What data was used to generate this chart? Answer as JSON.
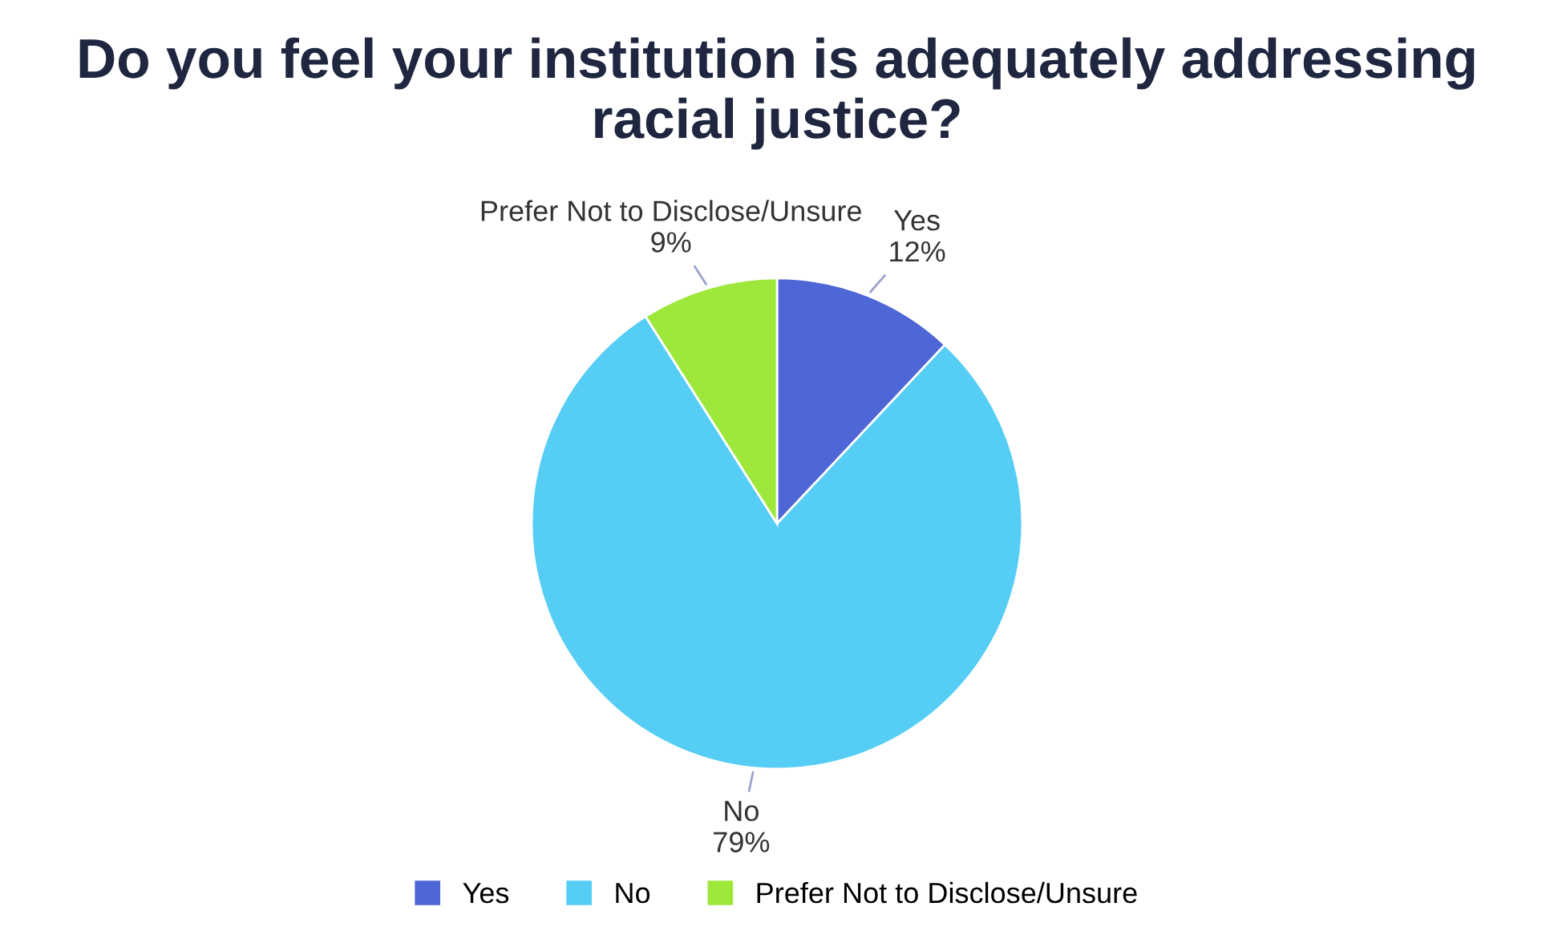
{
  "chart_data": {
    "type": "pie",
    "title": "Do you feel your institution is adequately addressing racial justice?",
    "categories": [
      "Yes",
      "No",
      "Prefer Not to Disclose/Unsure"
    ],
    "values": [
      12,
      79,
      9
    ],
    "colors": [
      "#4f66d6",
      "#55cdf5",
      "#9ee83c"
    ],
    "value_labels": [
      "12%",
      "79%",
      "9%"
    ],
    "legend": "bottom"
  }
}
